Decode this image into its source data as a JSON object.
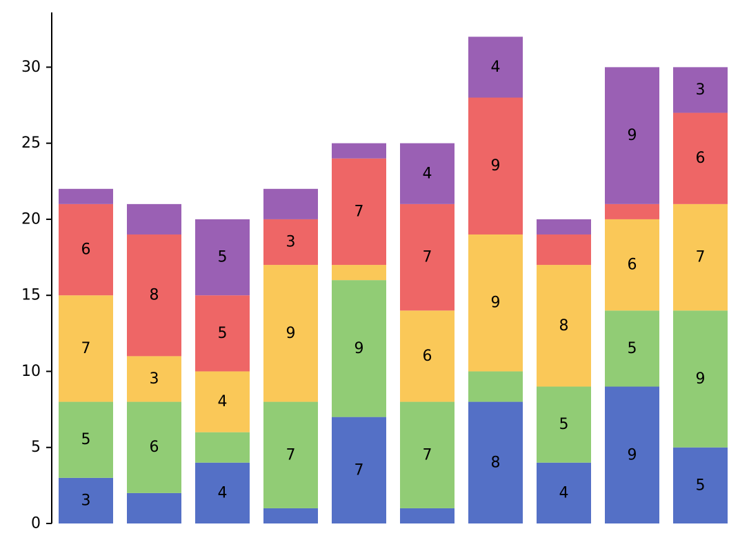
{
  "chart_data": {
    "type": "bar",
    "stacked": true,
    "title": "",
    "xlabel": "",
    "ylabel": "",
    "categories": [
      "",
      "",
      "",
      "",
      "",
      "",
      "",
      "",
      "",
      ""
    ],
    "ylim": [
      0,
      33.6
    ],
    "yticks": [
      0,
      5,
      10,
      15,
      20,
      25,
      30
    ],
    "grid": false,
    "legend": "none",
    "colors": [
      "#5470c6",
      "#91cc75",
      "#fac858",
      "#ee6666",
      "#9a60b4"
    ],
    "series": [
      {
        "values": [
          3,
          2,
          4,
          1,
          7,
          1,
          8,
          4,
          9,
          5
        ]
      },
      {
        "values": [
          5,
          6,
          2,
          7,
          9,
          7,
          2,
          5,
          5,
          9
        ]
      },
      {
        "values": [
          7,
          3,
          4,
          9,
          1,
          6,
          9,
          8,
          6,
          7
        ]
      },
      {
        "values": [
          6,
          8,
          5,
          3,
          7,
          7,
          9,
          2,
          1,
          6
        ]
      },
      {
        "values": [
          1,
          2,
          5,
          2,
          1,
          4,
          4,
          1,
          9,
          3
        ]
      }
    ],
    "label_min_value": 3
  }
}
